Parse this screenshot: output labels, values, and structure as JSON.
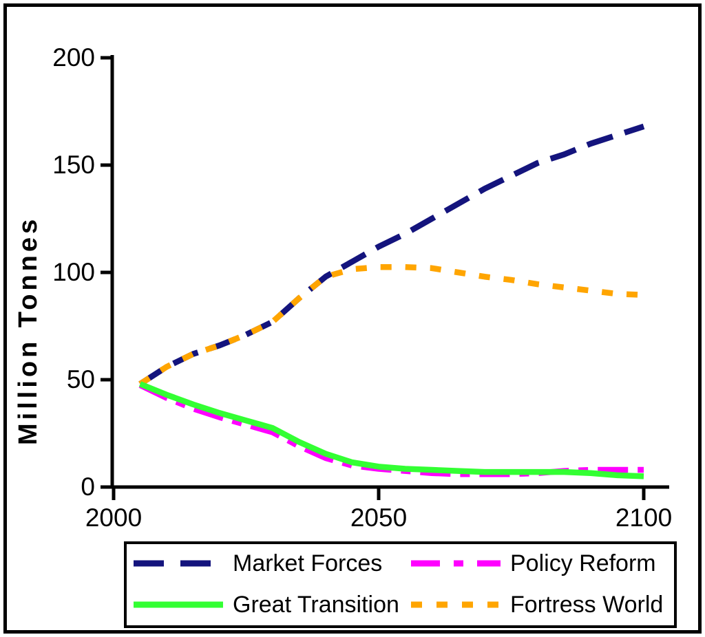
{
  "figure": {
    "background": "#FFFFFF",
    "frame_color": "#000000"
  },
  "chart_data": {
    "type": "line",
    "title": "",
    "xlabel": "",
    "ylabel": "Million Tonnes",
    "grid": false,
    "legend_position": "bottom",
    "x_axis": {
      "min": 2000,
      "max": 2104,
      "ticks": [
        2000,
        2050,
        2100
      ]
    },
    "y_axis": {
      "min": 0,
      "max": 200,
      "ticks": [
        0,
        50,
        100,
        150,
        200
      ]
    },
    "x": [
      2005,
      2010,
      2015,
      2020,
      2025,
      2030,
      2035,
      2040,
      2045,
      2050,
      2055,
      2060,
      2065,
      2070,
      2075,
      2080,
      2085,
      2090,
      2095,
      2100
    ],
    "series": [
      {
        "name": "Market Forces",
        "color": "#14147D",
        "line_style": "long-dash",
        "dash": "39 18",
        "legend_dash": "44 24",
        "values": [
          48,
          56,
          62,
          66,
          71,
          77,
          88,
          98,
          105,
          112,
          118,
          125,
          132,
          139,
          145,
          151,
          155,
          160,
          164,
          168
        ]
      },
      {
        "name": "Policy Reform",
        "color": "#FF00FF",
        "line_style": "dash-dot-dot",
        "dash": "44 14 14 14",
        "legend_dash": "42 20 14 20",
        "values": [
          47.5,
          41.5,
          36.5,
          32.5,
          29,
          25.5,
          19,
          13.5,
          10,
          8.5,
          7.5,
          6.5,
          6,
          6,
          6,
          6.5,
          7.5,
          8,
          8,
          8
        ]
      },
      {
        "name": "Great Transition",
        "color": "#33FF33",
        "line_style": "solid",
        "dash": "",
        "legend_dash": "",
        "values": [
          48,
          43,
          38.5,
          34.5,
          31,
          27.5,
          21,
          15.5,
          11.5,
          9.5,
          8.5,
          8,
          7.5,
          7,
          7,
          7,
          7,
          6.5,
          5.5,
          5
        ]
      },
      {
        "name": "Fortress World",
        "color": "#FFA500",
        "line_style": "dotted-dash",
        "dash": "16 20",
        "legend_dash": "16 21",
        "values": [
          48,
          56,
          62,
          66,
          71,
          77,
          88,
          98,
          101.5,
          102.5,
          102.5,
          102,
          100,
          98,
          96.5,
          94.5,
          93,
          91.5,
          90,
          89.5
        ]
      }
    ]
  }
}
